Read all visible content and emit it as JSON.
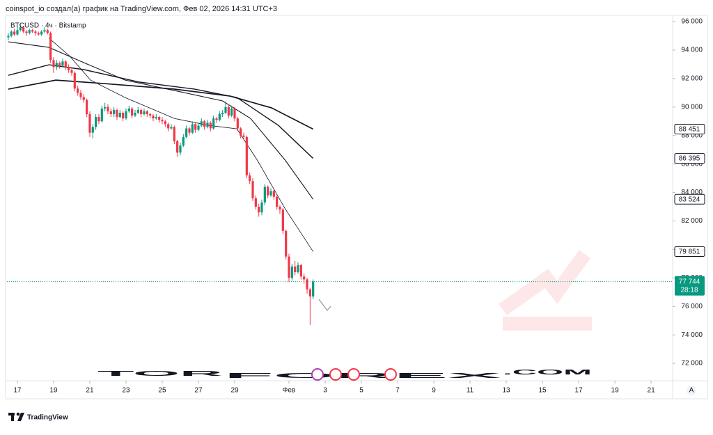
{
  "chart_data": {
    "type": "candlestick",
    "header": "coinspot_io создал(а) график на TradingView.com, Фев 02, 2026 14:31 UTC+3",
    "symbol_legend": "BTCUSD · 4ч · Bitstamp",
    "watermark": [
      "TOR",
      "FOREX",
      ".COM"
    ],
    "brand": "TradingView",
    "scale_mode": "A",
    "up_color": "#089981",
    "down_color": "#f23645",
    "xlim": [
      -13.8,
      867.6
    ],
    "xticks": [
      {
        "value": 0,
        "label": "17"
      },
      {
        "value": 48,
        "label": "19"
      },
      {
        "value": 96,
        "label": "21"
      },
      {
        "value": 144,
        "label": "23"
      },
      {
        "value": 192,
        "label": "25"
      },
      {
        "value": 240,
        "label": "27"
      },
      {
        "value": 288,
        "label": "29"
      },
      {
        "value": 360,
        "label": "Фев"
      },
      {
        "value": 408,
        "label": "3"
      },
      {
        "value": 456,
        "label": "5"
      },
      {
        "value": 504,
        "label": "7"
      },
      {
        "value": 552,
        "label": "9"
      },
      {
        "value": 600,
        "label": "11"
      },
      {
        "value": 648,
        "label": "13"
      },
      {
        "value": 696,
        "label": "15"
      },
      {
        "value": 744,
        "label": "17"
      },
      {
        "value": 792,
        "label": "19"
      },
      {
        "value": 840,
        "label": "21"
      }
    ],
    "ylim": [
      70880,
      96540
    ],
    "yticks": [
      {
        "value": 72000,
        "label": "72 000"
      },
      {
        "value": 74000,
        "label": "74 000"
      },
      {
        "value": 76000,
        "label": "76 000"
      },
      {
        "value": 78000,
        "label": "78 000"
      },
      {
        "value": 80000,
        "label": "80 000"
      },
      {
        "value": 82000,
        "label": "82 000"
      },
      {
        "value": 84000,
        "label": "84 000"
      },
      {
        "value": 86000,
        "label": "86 000"
      },
      {
        "value": 88000,
        "label": "88 000"
      },
      {
        "value": 90000,
        "label": "90 000"
      },
      {
        "value": 92000,
        "label": "92 000"
      },
      {
        "value": 94000,
        "label": "94 000"
      },
      {
        "value": 96000,
        "label": "96 000"
      }
    ],
    "x": [
      -12,
      -8,
      -4,
      0,
      4,
      8,
      12,
      16,
      20,
      24,
      28,
      32,
      36,
      40,
      44,
      48,
      52,
      56,
      60,
      64,
      68,
      72,
      76,
      80,
      84,
      88,
      92,
      96,
      100,
      104,
      108,
      112,
      116,
      120,
      124,
      128,
      132,
      136,
      140,
      144,
      148,
      152,
      156,
      160,
      164,
      168,
      172,
      176,
      180,
      184,
      188,
      192,
      196,
      200,
      204,
      208,
      212,
      216,
      220,
      224,
      228,
      232,
      236,
      240,
      244,
      248,
      252,
      256,
      260,
      264,
      268,
      272,
      276,
      280,
      284,
      288,
      292,
      296,
      300,
      304,
      308,
      312,
      316,
      320,
      324,
      328,
      332,
      336,
      340,
      344,
      348,
      352,
      356,
      360,
      364,
      368,
      372,
      376,
      380,
      384,
      388,
      392
    ],
    "candles": [
      [
        94900,
        95200,
        94700,
        95000
      ],
      [
        95000,
        95400,
        94900,
        95300
      ],
      [
        95300,
        95500,
        95000,
        95100
      ],
      [
        95100,
        95600,
        95000,
        95400
      ],
      [
        95400,
        95800,
        95300,
        95600
      ],
      [
        95600,
        95700,
        95200,
        95300
      ],
      [
        95300,
        95400,
        95000,
        95200
      ],
      [
        95200,
        95500,
        95100,
        95400
      ],
      [
        95400,
        95500,
        95200,
        95300
      ],
      [
        95300,
        95400,
        95000,
        95200
      ],
      [
        95200,
        95300,
        95000,
        95100
      ],
      [
        95100,
        95400,
        95000,
        95300
      ],
      [
        95300,
        95600,
        95200,
        95400
      ],
      [
        95400,
        95500,
        95100,
        95200
      ],
      [
        95200,
        95300,
        93100,
        93300
      ],
      [
        93300,
        93500,
        92400,
        92800
      ],
      [
        92800,
        93300,
        92600,
        93100
      ],
      [
        93100,
        93200,
        92700,
        92900
      ],
      [
        92900,
        93400,
        92800,
        93200
      ],
      [
        93200,
        93300,
        92600,
        92800
      ],
      [
        92800,
        93000,
        92400,
        92600
      ],
      [
        92600,
        92800,
        92200,
        92400
      ],
      [
        92400,
        92500,
        91100,
        91300
      ],
      [
        91300,
        91500,
        90800,
        91000
      ],
      [
        91000,
        91200,
        90500,
        90700
      ],
      [
        90700,
        90900,
        90300,
        90500
      ],
      [
        90500,
        90600,
        89300,
        89500
      ],
      [
        89500,
        89700,
        87900,
        88200
      ],
      [
        88200,
        88800,
        87800,
        88600
      ],
      [
        88600,
        89500,
        88400,
        89300
      ],
      [
        89300,
        89500,
        88800,
        89000
      ],
      [
        89000,
        90100,
        88900,
        89900
      ],
      [
        89900,
        90300,
        89700,
        90000
      ],
      [
        90000,
        90200,
        89500,
        89700
      ],
      [
        89700,
        89900,
        89300,
        89500
      ],
      [
        89500,
        90000,
        89300,
        89800
      ],
      [
        89800,
        89900,
        89100,
        89300
      ],
      [
        89300,
        89800,
        89200,
        89600
      ],
      [
        89600,
        89700,
        89000,
        89200
      ],
      [
        89200,
        89900,
        89100,
        89700
      ],
      [
        89700,
        90100,
        89600,
        89900
      ],
      [
        89900,
        90000,
        89200,
        89400
      ],
      [
        89400,
        89800,
        89300,
        89600
      ],
      [
        89600,
        90000,
        89500,
        89800
      ],
      [
        89800,
        89900,
        89300,
        89500
      ],
      [
        89500,
        89900,
        89400,
        89700
      ],
      [
        89700,
        89800,
        89300,
        89500
      ],
      [
        89500,
        89600,
        89200,
        89400
      ],
      [
        89400,
        89500,
        89000,
        89200
      ],
      [
        89200,
        89500,
        89100,
        89300
      ],
      [
        89300,
        89400,
        88900,
        89100
      ],
      [
        89100,
        89300,
        88800,
        89000
      ],
      [
        89000,
        89100,
        88600,
        88800
      ],
      [
        88800,
        88900,
        88300,
        88500
      ],
      [
        88500,
        88800,
        88400,
        88600
      ],
      [
        88600,
        88700,
        87400,
        87600
      ],
      [
        87600,
        87700,
        86500,
        86800
      ],
      [
        86800,
        87500,
        86600,
        87300
      ],
      [
        87300,
        88100,
        87200,
        87900
      ],
      [
        87900,
        88700,
        87800,
        88500
      ],
      [
        88500,
        88600,
        88000,
        88200
      ],
      [
        88200,
        89000,
        88100,
        88800
      ],
      [
        88800,
        88900,
        88200,
        88400
      ],
      [
        88400,
        88900,
        88300,
        88700
      ],
      [
        88700,
        89200,
        88600,
        89000
      ],
      [
        89000,
        89100,
        88400,
        88600
      ],
      [
        88600,
        89100,
        88500,
        88900
      ],
      [
        88900,
        89000,
        88300,
        88500
      ],
      [
        88500,
        89400,
        88400,
        89200
      ],
      [
        89200,
        89300,
        88900,
        89100
      ],
      [
        89100,
        89700,
        89000,
        89500
      ],
      [
        89500,
        89800,
        89300,
        89600
      ],
      [
        89600,
        90400,
        89500,
        90000
      ],
      [
        90000,
        90200,
        89200,
        89400
      ],
      [
        89400,
        90100,
        89300,
        89900
      ],
      [
        89900,
        90000,
        89000,
        89200
      ],
      [
        89200,
        89300,
        88300,
        88500
      ],
      [
        88500,
        88600,
        87800,
        88000
      ],
      [
        88000,
        88200,
        87700,
        87900
      ],
      [
        87900,
        88000,
        85000,
        85200
      ],
      [
        85200,
        85400,
        84600,
        84800
      ],
      [
        84800,
        85000,
        83400,
        83600
      ],
      [
        83600,
        83800,
        82800,
        83000
      ],
      [
        83000,
        83200,
        82300,
        82600
      ],
      [
        82600,
        83500,
        82400,
        83300
      ],
      [
        83300,
        84600,
        83100,
        84400
      ],
      [
        84400,
        84500,
        83600,
        83800
      ],
      [
        83800,
        84300,
        83700,
        84100
      ],
      [
        84100,
        84200,
        83500,
        83700
      ],
      [
        83700,
        83800,
        82800,
        83000
      ],
      [
        83000,
        83100,
        82500,
        82800
      ],
      [
        82800,
        82900,
        81100,
        81300
      ],
      [
        81300,
        81400,
        79300,
        79500
      ],
      [
        79500,
        79700,
        77700,
        78000
      ],
      [
        78000,
        79000,
        77800,
        78800
      ],
      [
        78800,
        79200,
        78200,
        78400
      ],
      [
        78400,
        79100,
        78300,
        78900
      ],
      [
        78900,
        79000,
        77900,
        78100
      ],
      [
        78100,
        78300,
        77600,
        77900
      ],
      [
        77900,
        78000,
        76900,
        77200
      ],
      [
        77200,
        77300,
        74700,
        76700
      ],
      [
        76700,
        77900,
        76500,
        77744
      ]
    ],
    "moving_averages": [
      {
        "color": "#131722",
        "x": [
          42,
          69,
          97,
          143,
          208,
          254,
          291,
          318,
          355,
          392
        ],
        "values": [
          94830,
          93600,
          91890,
          90665,
          89200,
          88710,
          88470,
          86270,
          82850,
          79851
        ],
        "value_labels": [
          null,
          null,
          null,
          null,
          null,
          null,
          null,
          null,
          null,
          "79 851"
        ]
      },
      {
        "color": "#131722",
        "x": [
          -12,
          42,
          88,
          143,
          208,
          272,
          309,
          355,
          392
        ],
        "values": [
          94580,
          94190,
          93120,
          91890,
          91160,
          90430,
          89200,
          86270,
          83524
        ],
        "value_labels": [
          null,
          null,
          null,
          null,
          null,
          null,
          null,
          null,
          "83 524"
        ]
      },
      {
        "color": "#131722",
        "x": [
          -12,
          42,
          88,
          162,
          235,
          291,
          346,
          392
        ],
        "values": [
          92230,
          92970,
          92630,
          91750,
          91260,
          90670,
          88710,
          86395
        ],
        "value_labels": [
          null,
          null,
          null,
          null,
          null,
          null,
          null,
          "86 395"
        ]
      },
      {
        "color": "#131722",
        "x": [
          -12,
          51,
          115,
          208,
          282,
          337,
          392
        ],
        "values": [
          91260,
          91890,
          91650,
          91260,
          90770,
          89940,
          88451
        ],
        "value_labels": [
          null,
          null,
          null,
          null,
          null,
          null,
          "88 451"
        ]
      }
    ],
    "last_price": {
      "value": 77744,
      "label": "77 744"
    },
    "countdown": "28:18"
  }
}
